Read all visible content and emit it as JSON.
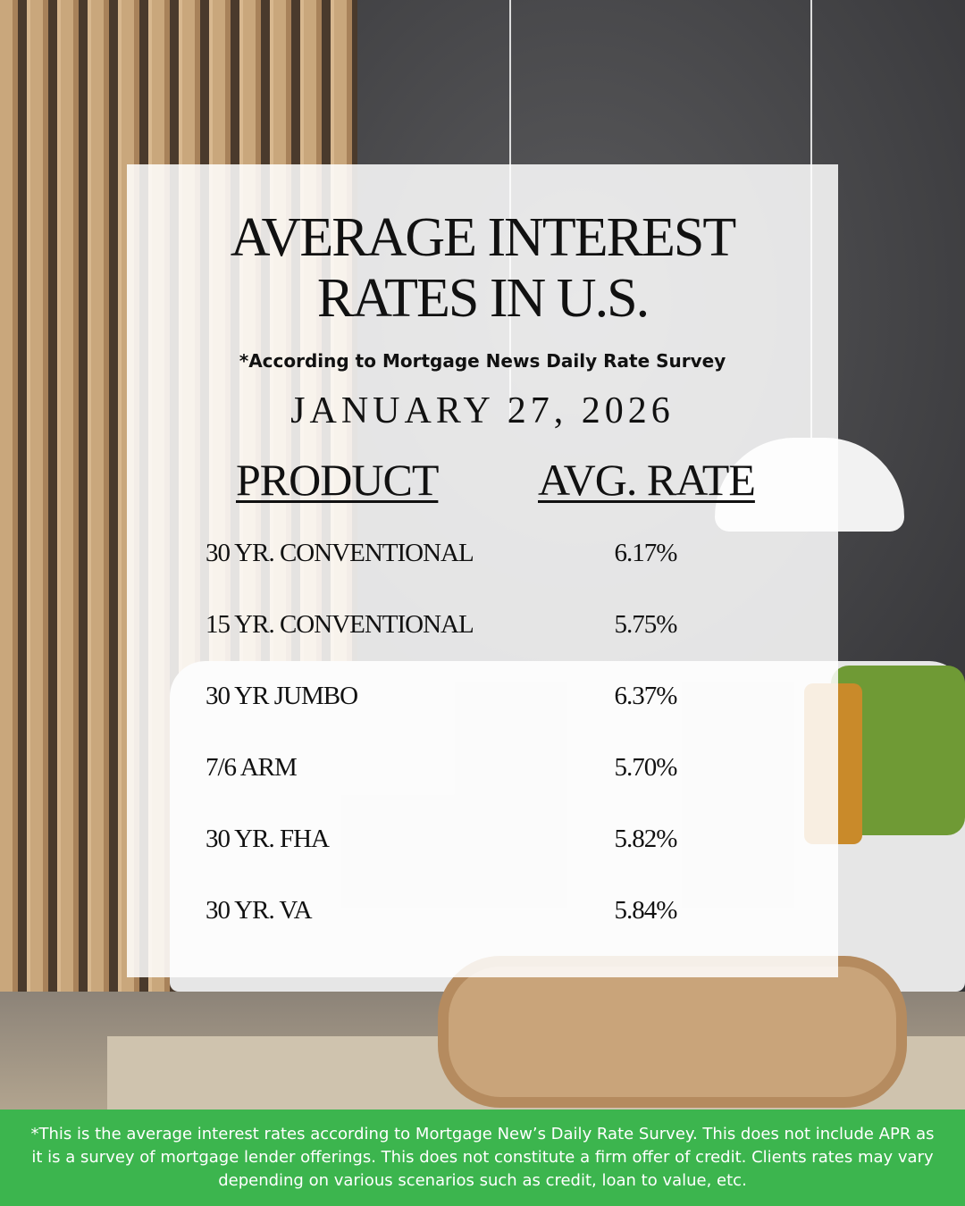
{
  "title_line1": "AVERAGE INTEREST",
  "title_line2": "RATES IN U.S.",
  "subtitle": "*According to Mortgage News Daily Rate Survey",
  "date": "JANUARY 27, 2026",
  "table": {
    "headers": [
      "PRODUCT",
      "AVG. RATE"
    ],
    "rows": [
      {
        "product": "30 YR. CONVENTIONAL",
        "rate": "6.17%"
      },
      {
        "product": "15 YR. CONVENTIONAL",
        "rate": "5.75%"
      },
      {
        "product": "30 YR JUMBO",
        "rate": "6.37%"
      },
      {
        "product": "7/6 ARM",
        "rate": "5.70%"
      },
      {
        "product": "30 YR. FHA",
        "rate": "5.82%"
      },
      {
        "product": "30 YR. VA",
        "rate": "5.84%"
      }
    ]
  },
  "disclaimer": "*This is the average interest rates according to Mortgage New’s Daily Rate Survey. This does not include APR as it is a survey of mortgage lender offerings. This does not constitute a firm offer of credit. Clients rates may vary depending on various scenarios such as credit, loan to value, etc.",
  "colors": {
    "footer": "#3cb54e",
    "text": "#111111"
  }
}
